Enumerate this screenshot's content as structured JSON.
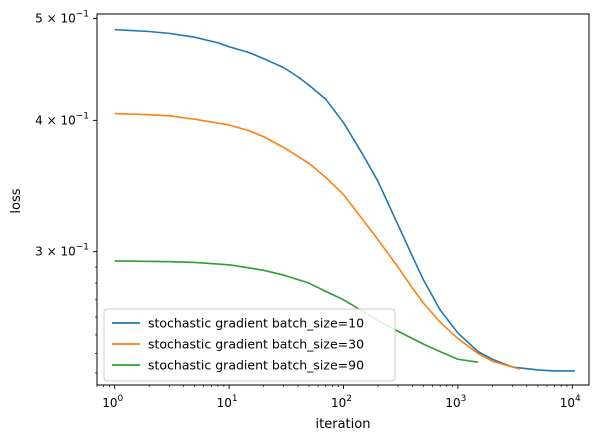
{
  "chart_data": {
    "type": "line",
    "xlabel": "iteration",
    "ylabel": "loss",
    "x_scale": "log",
    "y_scale": "log",
    "xlim": [
      0.7,
      14000
    ],
    "ylim": [
      0.224,
      0.505
    ],
    "x_ticks": [
      {
        "value": 1,
        "label": "10^0"
      },
      {
        "value": 10,
        "label": "10^1"
      },
      {
        "value": 100,
        "label": "10^2"
      },
      {
        "value": 1000,
        "label": "10^3"
      },
      {
        "value": 10000,
        "label": "10^4"
      }
    ],
    "y_ticks": [
      {
        "value": 0.3,
        "label": "3 × 10^−1"
      },
      {
        "value": 0.4,
        "label": "4 × 10^−1"
      },
      {
        "value": 0.5,
        "label": "5 × 10^−1"
      }
    ],
    "grid": false,
    "legend_position": "bottom-left",
    "series": [
      {
        "name": "stochastic gradient batch_size=10",
        "color": "#1f77b4",
        "points": [
          [
            1,
            0.488
          ],
          [
            2,
            0.486
          ],
          [
            3,
            0.484
          ],
          [
            5,
            0.48
          ],
          [
            8,
            0.474
          ],
          [
            10,
            0.47
          ],
          [
            15,
            0.464
          ],
          [
            20,
            0.458
          ],
          [
            30,
            0.449
          ],
          [
            40,
            0.44
          ],
          [
            50,
            0.432
          ],
          [
            70,
            0.419
          ],
          [
            100,
            0.398
          ],
          [
            150,
            0.37
          ],
          [
            200,
            0.35
          ],
          [
            300,
            0.318
          ],
          [
            400,
            0.297
          ],
          [
            500,
            0.282
          ],
          [
            700,
            0.264
          ],
          [
            1000,
            0.251
          ],
          [
            1500,
            0.241
          ],
          [
            2000,
            0.237
          ],
          [
            3000,
            0.233
          ],
          [
            5000,
            0.2315
          ],
          [
            7000,
            0.231
          ],
          [
            10500,
            0.231
          ]
        ]
      },
      {
        "name": "stochastic gradient batch_size=30",
        "color": "#ff7f0e",
        "points": [
          [
            1,
            0.406
          ],
          [
            2,
            0.405
          ],
          [
            3,
            0.404
          ],
          [
            5,
            0.401
          ],
          [
            10,
            0.396
          ],
          [
            15,
            0.391
          ],
          [
            20,
            0.386
          ],
          [
            30,
            0.377
          ],
          [
            50,
            0.364
          ],
          [
            70,
            0.353
          ],
          [
            100,
            0.34
          ],
          [
            150,
            0.321
          ],
          [
            200,
            0.308
          ],
          [
            300,
            0.29
          ],
          [
            400,
            0.277
          ],
          [
            500,
            0.268
          ],
          [
            700,
            0.257
          ],
          [
            1000,
            0.248
          ],
          [
            1500,
            0.24
          ],
          [
            2000,
            0.236
          ],
          [
            3000,
            0.233
          ],
          [
            3500,
            0.232
          ]
        ]
      },
      {
        "name": "stochastic gradient batch_size=90",
        "color": "#2ca02c",
        "points": [
          [
            1,
            0.294
          ],
          [
            3,
            0.2935
          ],
          [
            5,
            0.293
          ],
          [
            10,
            0.2915
          ],
          [
            15,
            0.2895
          ],
          [
            20,
            0.288
          ],
          [
            30,
            0.285
          ],
          [
            50,
            0.28
          ],
          [
            70,
            0.275
          ],
          [
            100,
            0.27
          ],
          [
            150,
            0.263
          ],
          [
            200,
            0.258
          ],
          [
            300,
            0.252
          ],
          [
            500,
            0.245
          ],
          [
            700,
            0.241
          ],
          [
            1000,
            0.237
          ],
          [
            1500,
            0.2355
          ]
        ]
      }
    ]
  }
}
